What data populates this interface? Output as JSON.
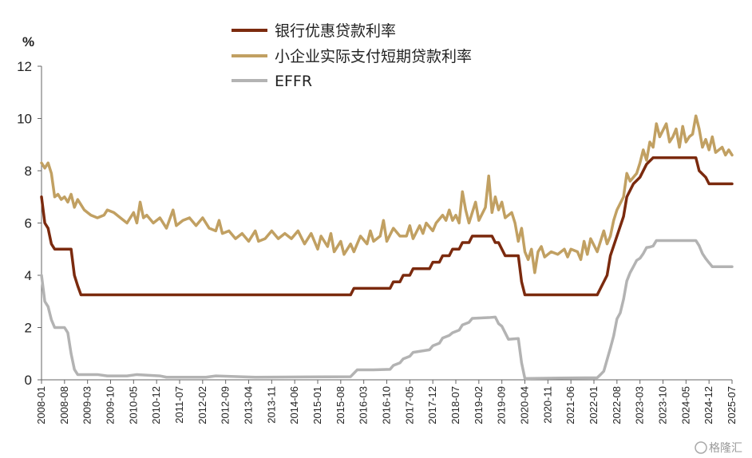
{
  "chart_data": {
    "type": "line",
    "unit": "%",
    "ylim": [
      0,
      12
    ],
    "yticks": [
      0,
      2,
      4,
      6,
      8,
      10,
      12
    ],
    "xlim": [
      "2008-01",
      "2025-07"
    ],
    "xtick_labels": [
      "2008-01",
      "2008-08",
      "2009-03",
      "2009-10",
      "2010-05",
      "2010-12",
      "2011-07",
      "2012-02",
      "2012-09",
      "2013-04",
      "2013-11",
      "2014-06",
      "2015-01",
      "2015-08",
      "2016-03",
      "2016-10",
      "2017-05",
      "2017-12",
      "2018-07",
      "2019-02",
      "2019-09",
      "2020-04",
      "2020-11",
      "2021-06",
      "2022-01",
      "2022-08",
      "2023-03",
      "2023-10",
      "2024-05",
      "2024-12",
      "2025-07"
    ],
    "legend_position": "top",
    "grid": false,
    "series": [
      {
        "name": "银行优惠贷款利率",
        "color": "#7b2a0e",
        "points": [
          [
            "2008-01",
            7.0
          ],
          [
            "2008-02",
            6.0
          ],
          [
            "2008-03",
            5.8
          ],
          [
            "2008-04",
            5.2
          ],
          [
            "2008-05",
            5.0
          ],
          [
            "2008-07",
            5.0
          ],
          [
            "2008-10",
            5.0
          ],
          [
            "2008-11",
            4.0
          ],
          [
            "2008-12",
            3.6
          ],
          [
            "2009-01",
            3.25
          ],
          [
            "2015-11",
            3.25
          ],
          [
            "2015-12",
            3.5
          ],
          [
            "2016-11",
            3.5
          ],
          [
            "2016-12",
            3.75
          ],
          [
            "2017-02",
            3.75
          ],
          [
            "2017-03",
            4.0
          ],
          [
            "2017-05",
            4.0
          ],
          [
            "2017-06",
            4.25
          ],
          [
            "2017-11",
            4.25
          ],
          [
            "2017-12",
            4.5
          ],
          [
            "2018-02",
            4.5
          ],
          [
            "2018-03",
            4.75
          ],
          [
            "2018-05",
            4.75
          ],
          [
            "2018-06",
            5.0
          ],
          [
            "2018-08",
            5.0
          ],
          [
            "2018-09",
            5.25
          ],
          [
            "2018-11",
            5.25
          ],
          [
            "2018-12",
            5.5
          ],
          [
            "2019-06",
            5.5
          ],
          [
            "2019-07",
            5.25
          ],
          [
            "2019-08",
            5.25
          ],
          [
            "2019-09",
            5.0
          ],
          [
            "2019-10",
            4.75
          ],
          [
            "2020-02",
            4.75
          ],
          [
            "2020-03",
            3.75
          ],
          [
            "2020-04",
            3.25
          ],
          [
            "2022-02",
            3.25
          ],
          [
            "2022-03",
            3.5
          ],
          [
            "2022-05",
            4.0
          ],
          [
            "2022-06",
            4.75
          ],
          [
            "2022-08",
            5.5
          ],
          [
            "2022-10",
            6.25
          ],
          [
            "2022-11",
            7.0
          ],
          [
            "2023-01",
            7.5
          ],
          [
            "2023-03",
            7.75
          ],
          [
            "2023-05",
            8.25
          ],
          [
            "2023-07",
            8.5
          ],
          [
            "2024-08",
            8.5
          ],
          [
            "2024-09",
            8.0
          ],
          [
            "2024-11",
            7.75
          ],
          [
            "2024-12",
            7.5
          ],
          [
            "2025-07",
            7.5
          ]
        ]
      },
      {
        "name": "小企业实际支付短期贷款利率",
        "color": "#c1a062",
        "points": [
          [
            "2008-01",
            8.3
          ],
          [
            "2008-02",
            8.1
          ],
          [
            "2008-03",
            8.3
          ],
          [
            "2008-04",
            7.9
          ],
          [
            "2008-05",
            7.0
          ],
          [
            "2008-06",
            7.1
          ],
          [
            "2008-07",
            6.9
          ],
          [
            "2008-08",
            7.0
          ],
          [
            "2008-09",
            6.8
          ],
          [
            "2008-10",
            7.1
          ],
          [
            "2008-11",
            6.6
          ],
          [
            "2008-12",
            6.9
          ],
          [
            "2009-02",
            6.5
          ],
          [
            "2009-04",
            6.3
          ],
          [
            "2009-06",
            6.2
          ],
          [
            "2009-08",
            6.3
          ],
          [
            "2009-09",
            6.5
          ],
          [
            "2009-11",
            6.4
          ],
          [
            "2010-01",
            6.2
          ],
          [
            "2010-03",
            6.0
          ],
          [
            "2010-05",
            6.4
          ],
          [
            "2010-06",
            6.0
          ],
          [
            "2010-07",
            6.8
          ],
          [
            "2010-08",
            6.2
          ],
          [
            "2010-09",
            6.3
          ],
          [
            "2010-11",
            6.0
          ],
          [
            "2011-01",
            6.2
          ],
          [
            "2011-03",
            5.8
          ],
          [
            "2011-05",
            6.5
          ],
          [
            "2011-06",
            5.9
          ],
          [
            "2011-08",
            6.1
          ],
          [
            "2011-10",
            6.2
          ],
          [
            "2011-12",
            5.9
          ],
          [
            "2012-02",
            6.2
          ],
          [
            "2012-04",
            5.8
          ],
          [
            "2012-06",
            5.7
          ],
          [
            "2012-07",
            6.1
          ],
          [
            "2012-08",
            5.6
          ],
          [
            "2012-10",
            5.7
          ],
          [
            "2012-12",
            5.4
          ],
          [
            "2013-02",
            5.6
          ],
          [
            "2013-04",
            5.3
          ],
          [
            "2013-06",
            5.7
          ],
          [
            "2013-07",
            5.3
          ],
          [
            "2013-09",
            5.4
          ],
          [
            "2013-11",
            5.7
          ],
          [
            "2014-01",
            5.4
          ],
          [
            "2014-03",
            5.6
          ],
          [
            "2014-05",
            5.4
          ],
          [
            "2014-07",
            5.7
          ],
          [
            "2014-09",
            5.2
          ],
          [
            "2014-11",
            5.6
          ],
          [
            "2015-01",
            5.0
          ],
          [
            "2015-02",
            5.5
          ],
          [
            "2015-04",
            5.1
          ],
          [
            "2015-05",
            5.6
          ],
          [
            "2015-06",
            4.9
          ],
          [
            "2015-08",
            5.3
          ],
          [
            "2015-09",
            4.8
          ],
          [
            "2015-11",
            5.2
          ],
          [
            "2015-12",
            4.9
          ],
          [
            "2016-02",
            5.5
          ],
          [
            "2016-04",
            5.2
          ],
          [
            "2016-05",
            5.7
          ],
          [
            "2016-06",
            5.3
          ],
          [
            "2016-08",
            5.5
          ],
          [
            "2016-09",
            6.1
          ],
          [
            "2016-10",
            5.3
          ],
          [
            "2016-12",
            5.8
          ],
          [
            "2017-02",
            5.5
          ],
          [
            "2017-04",
            5.5
          ],
          [
            "2017-05",
            5.9
          ],
          [
            "2017-06",
            5.4
          ],
          [
            "2017-08",
            5.9
          ],
          [
            "2017-09",
            5.6
          ],
          [
            "2017-10",
            6.0
          ],
          [
            "2017-12",
            5.7
          ],
          [
            "2018-01",
            6.0
          ],
          [
            "2018-03",
            6.3
          ],
          [
            "2018-04",
            6.1
          ],
          [
            "2018-05",
            6.5
          ],
          [
            "2018-06",
            6.1
          ],
          [
            "2018-07",
            6.3
          ],
          [
            "2018-08",
            6.0
          ],
          [
            "2018-09",
            7.2
          ],
          [
            "2018-10",
            6.5
          ],
          [
            "2018-11",
            6.0
          ],
          [
            "2018-12",
            6.4
          ],
          [
            "2019-01",
            6.8
          ],
          [
            "2019-02",
            6.1
          ],
          [
            "2019-04",
            6.6
          ],
          [
            "2019-05",
            7.8
          ],
          [
            "2019-06",
            6.4
          ],
          [
            "2019-07",
            7.0
          ],
          [
            "2019-08",
            6.5
          ],
          [
            "2019-09",
            6.8
          ],
          [
            "2019-10",
            6.2
          ],
          [
            "2019-12",
            6.4
          ],
          [
            "2020-01",
            6.0
          ],
          [
            "2020-02",
            5.3
          ],
          [
            "2020-03",
            5.8
          ],
          [
            "2020-04",
            4.9
          ],
          [
            "2020-05",
            4.6
          ],
          [
            "2020-06",
            5.0
          ],
          [
            "2020-07",
            4.1
          ],
          [
            "2020-08",
            4.9
          ],
          [
            "2020-09",
            5.1
          ],
          [
            "2020-10",
            4.7
          ],
          [
            "2020-12",
            4.9
          ],
          [
            "2021-02",
            4.8
          ],
          [
            "2021-04",
            5.0
          ],
          [
            "2021-05",
            4.7
          ],
          [
            "2021-06",
            5.0
          ],
          [
            "2021-08",
            4.9
          ],
          [
            "2021-09",
            4.6
          ],
          [
            "2021-10",
            5.3
          ],
          [
            "2021-11",
            4.8
          ],
          [
            "2021-12",
            5.4
          ],
          [
            "2022-02",
            4.9
          ],
          [
            "2022-03",
            5.3
          ],
          [
            "2022-04",
            5.7
          ],
          [
            "2022-05",
            5.2
          ],
          [
            "2022-06",
            5.5
          ],
          [
            "2022-07",
            6.1
          ],
          [
            "2022-08",
            6.5
          ],
          [
            "2022-10",
            7.0
          ],
          [
            "2022-11",
            7.9
          ],
          [
            "2022-12",
            7.6
          ],
          [
            "2023-02",
            7.9
          ],
          [
            "2023-03",
            8.3
          ],
          [
            "2023-04",
            8.8
          ],
          [
            "2023-05",
            8.4
          ],
          [
            "2023-06",
            9.1
          ],
          [
            "2023-07",
            8.9
          ],
          [
            "2023-08",
            9.8
          ],
          [
            "2023-09",
            9.3
          ],
          [
            "2023-11",
            9.8
          ],
          [
            "2023-12",
            9.1
          ],
          [
            "2024-01",
            9.3
          ],
          [
            "2024-02",
            9.6
          ],
          [
            "2024-03",
            8.9
          ],
          [
            "2024-04",
            9.7
          ],
          [
            "2024-05",
            9.1
          ],
          [
            "2024-06",
            9.3
          ],
          [
            "2024-07",
            9.4
          ],
          [
            "2024-08",
            10.1
          ],
          [
            "2024-09",
            9.6
          ],
          [
            "2024-10",
            8.9
          ],
          [
            "2024-11",
            9.2
          ],
          [
            "2024-12",
            8.8
          ],
          [
            "2025-01",
            9.3
          ],
          [
            "2025-02",
            8.7
          ],
          [
            "2025-04",
            8.9
          ],
          [
            "2025-05",
            8.6
          ],
          [
            "2025-06",
            8.8
          ],
          [
            "2025-07",
            8.6
          ]
        ]
      },
      {
        "name": "EFFR",
        "color": "#b3b3b3",
        "points": [
          [
            "2008-01",
            4.0
          ],
          [
            "2008-02",
            3.0
          ],
          [
            "2008-03",
            2.8
          ],
          [
            "2008-04",
            2.3
          ],
          [
            "2008-05",
            2.0
          ],
          [
            "2008-07",
            2.0
          ],
          [
            "2008-08",
            2.0
          ],
          [
            "2008-09",
            1.8
          ],
          [
            "2008-10",
            1.0
          ],
          [
            "2008-11",
            0.4
          ],
          [
            "2008-12",
            0.2
          ],
          [
            "2009-03",
            0.2
          ],
          [
            "2009-06",
            0.2
          ],
          [
            "2009-09",
            0.15
          ],
          [
            "2010-03",
            0.15
          ],
          [
            "2010-06",
            0.2
          ],
          [
            "2011-01",
            0.15
          ],
          [
            "2011-03",
            0.1
          ],
          [
            "2012-03",
            0.1
          ],
          [
            "2012-06",
            0.15
          ],
          [
            "2013-06",
            0.1
          ],
          [
            "2015-11",
            0.12
          ],
          [
            "2015-12",
            0.25
          ],
          [
            "2016-01",
            0.38
          ],
          [
            "2016-06",
            0.38
          ],
          [
            "2016-11",
            0.4
          ],
          [
            "2016-12",
            0.55
          ],
          [
            "2017-02",
            0.65
          ],
          [
            "2017-03",
            0.8
          ],
          [
            "2017-05",
            0.9
          ],
          [
            "2017-06",
            1.05
          ],
          [
            "2017-11",
            1.15
          ],
          [
            "2017-12",
            1.3
          ],
          [
            "2018-02",
            1.4
          ],
          [
            "2018-03",
            1.6
          ],
          [
            "2018-05",
            1.7
          ],
          [
            "2018-06",
            1.8
          ],
          [
            "2018-08",
            1.9
          ],
          [
            "2018-09",
            2.1
          ],
          [
            "2018-11",
            2.2
          ],
          [
            "2018-12",
            2.35
          ],
          [
            "2019-05",
            2.38
          ],
          [
            "2019-07",
            2.4
          ],
          [
            "2019-08",
            2.15
          ],
          [
            "2019-09",
            2.05
          ],
          [
            "2019-10",
            1.8
          ],
          [
            "2019-11",
            1.55
          ],
          [
            "2020-02",
            1.58
          ],
          [
            "2020-03",
            0.65
          ],
          [
            "2020-04",
            0.05
          ],
          [
            "2021-03",
            0.07
          ],
          [
            "2022-02",
            0.08
          ],
          [
            "2022-03",
            0.2
          ],
          [
            "2022-04",
            0.33
          ],
          [
            "2022-05",
            0.77
          ],
          [
            "2022-06",
            1.21
          ],
          [
            "2022-07",
            1.68
          ],
          [
            "2022-08",
            2.33
          ],
          [
            "2022-09",
            2.56
          ],
          [
            "2022-10",
            3.08
          ],
          [
            "2022-11",
            3.78
          ],
          [
            "2022-12",
            4.1
          ],
          [
            "2023-01",
            4.33
          ],
          [
            "2023-02",
            4.57
          ],
          [
            "2023-03",
            4.65
          ],
          [
            "2023-04",
            4.83
          ],
          [
            "2023-05",
            5.06
          ],
          [
            "2023-06",
            5.08
          ],
          [
            "2023-07",
            5.12
          ],
          [
            "2023-08",
            5.33
          ],
          [
            "2024-08",
            5.33
          ],
          [
            "2024-09",
            5.13
          ],
          [
            "2024-10",
            4.83
          ],
          [
            "2024-11",
            4.64
          ],
          [
            "2024-12",
            4.48
          ],
          [
            "2025-01",
            4.33
          ],
          [
            "2025-07",
            4.33
          ]
        ]
      }
    ]
  },
  "watermark": "格隆汇"
}
